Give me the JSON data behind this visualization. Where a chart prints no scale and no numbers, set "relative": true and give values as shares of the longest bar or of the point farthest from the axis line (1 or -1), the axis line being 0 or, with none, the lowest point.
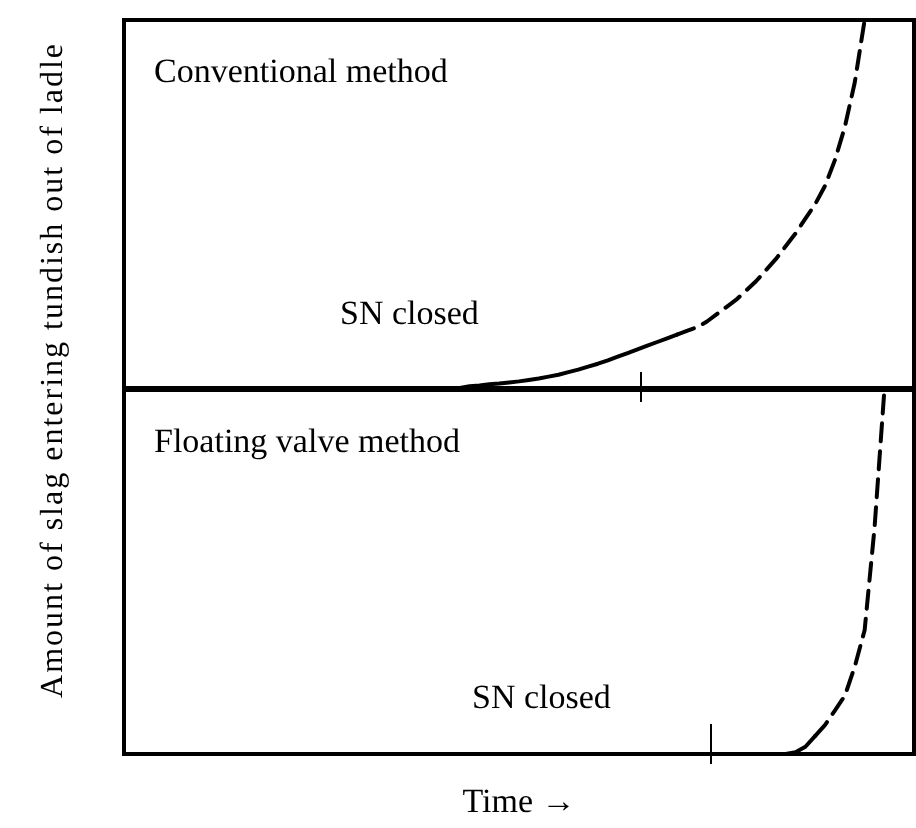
{
  "chart_data": [
    {
      "type": "line",
      "title": "Conventional method",
      "ylabel": "Amount of slag entering tundish out of ladle",
      "relative": true,
      "annotations": [
        "SN closed"
      ],
      "categories": [
        null,
        null,
        null,
        null,
        null,
        null,
        null,
        null,
        null,
        null,
        null,
        null,
        null,
        null,
        null,
        null,
        null,
        null,
        null,
        null,
        null,
        null,
        null,
        null,
        null,
        null,
        null,
        null,
        null,
        null,
        null,
        null,
        null,
        null,
        null,
        null,
        null,
        null,
        null,
        null,
        null,
        null,
        null,
        null,
        null,
        null,
        null,
        null,
        null,
        null,
        null,
        null,
        null,
        null,
        null,
        null,
        null,
        null,
        null,
        null,
        null,
        null,
        null,
        null,
        null,
        null,
        null,
        null,
        null,
        null,
        null,
        null,
        null,
        null,
        null,
        null,
        null,
        null,
        null,
        null,
        null
      ],
      "series": [
        {
          "color": "#000000",
          "line_style": "solid",
          "values": [
            0,
            0,
            0,
            0,
            0,
            0,
            0,
            0,
            0,
            0,
            0,
            0,
            0,
            0,
            0,
            0,
            0,
            0,
            0,
            0,
            0,
            0,
            0,
            0,
            0,
            0,
            0,
            0,
            0,
            0,
            0,
            0,
            0,
            0,
            0,
            0.005,
            0.007,
            0.01,
            0.012,
            0.015,
            0.018,
            0.022,
            0.026,
            0.031,
            0.036,
            0.043,
            0.05,
            0.058,
            0.066,
            0.075,
            0.085,
            0.095,
            0.105,
            0.115,
            0.125,
            0.135,
            0.145,
            null,
            null,
            null,
            null,
            null,
            null,
            null,
            null,
            null,
            null,
            null,
            null,
            null,
            null,
            null,
            null,
            null,
            null,
            null,
            null,
            null,
            null,
            null,
            null
          ]
        },
        {
          "color": "#000000",
          "line_style": "dashed",
          "values": [
            null,
            null,
            null,
            null,
            null,
            null,
            null,
            null,
            null,
            null,
            null,
            null,
            null,
            null,
            null,
            null,
            null,
            null,
            null,
            null,
            null,
            null,
            null,
            null,
            null,
            null,
            null,
            null,
            null,
            null,
            null,
            null,
            null,
            null,
            null,
            null,
            null,
            null,
            null,
            null,
            null,
            null,
            null,
            null,
            null,
            null,
            null,
            null,
            null,
            null,
            null,
            null,
            null,
            null,
            null,
            null,
            0.145,
            0.155,
            0.165,
            0.18,
            0.2,
            0.22,
            0.24,
            0.265,
            0.29,
            0.32,
            0.35,
            0.385,
            0.42,
            0.46,
            0.5,
            0.55,
            0.62,
            0.71,
            0.83,
            1,
            null,
            null,
            null,
            null,
            null
          ]
        }
      ]
    },
    {
      "type": "line",
      "title": "Floating valve method",
      "xlabel": "Time →",
      "relative": true,
      "annotations": [
        "SN closed"
      ],
      "categories": [
        null,
        null,
        null,
        null,
        null,
        null,
        null,
        null,
        null,
        null,
        null,
        null,
        null,
        null,
        null,
        null,
        null,
        null,
        null,
        null,
        null,
        null,
        null,
        null,
        null,
        null,
        null,
        null,
        null,
        null,
        null,
        null,
        null,
        null,
        null,
        null,
        null,
        null,
        null,
        null,
        null,
        null,
        null,
        null,
        null,
        null,
        null,
        null,
        null,
        null,
        null,
        null,
        null,
        null,
        null,
        null,
        null,
        null,
        null,
        null,
        null,
        null,
        null,
        null,
        null,
        null,
        null,
        null,
        null,
        null,
        null,
        null,
        null,
        null,
        null,
        null,
        null,
        null,
        null,
        null,
        null
      ],
      "series": [
        {
          "color": "#000000",
          "line_style": "solid",
          "values": [
            null,
            null,
            null,
            null,
            null,
            null,
            null,
            null,
            null,
            null,
            null,
            null,
            null,
            null,
            null,
            null,
            null,
            null,
            null,
            null,
            null,
            null,
            null,
            null,
            null,
            null,
            null,
            null,
            null,
            null,
            null,
            null,
            null,
            null,
            null,
            null,
            null,
            null,
            null,
            null,
            null,
            null,
            null,
            null,
            null,
            null,
            null,
            null,
            null,
            null,
            null,
            null,
            null,
            null,
            null,
            null,
            null,
            null,
            null,
            null,
            null,
            null,
            null,
            null,
            null,
            null,
            null,
            0,
            0.005,
            0.02,
            0.05,
            null,
            null,
            null,
            null,
            null,
            null,
            null,
            null,
            null,
            null
          ]
        },
        {
          "color": "#000000",
          "line_style": "dashed",
          "values": [
            null,
            null,
            null,
            null,
            null,
            null,
            null,
            null,
            null,
            null,
            null,
            null,
            null,
            null,
            null,
            null,
            null,
            null,
            null,
            null,
            null,
            null,
            null,
            null,
            null,
            null,
            null,
            null,
            null,
            null,
            null,
            null,
            null,
            null,
            null,
            null,
            null,
            null,
            null,
            null,
            null,
            null,
            null,
            null,
            null,
            null,
            null,
            null,
            null,
            null,
            null,
            null,
            null,
            null,
            null,
            null,
            null,
            null,
            null,
            null,
            null,
            null,
            null,
            null,
            null,
            null,
            null,
            null,
            null,
            null,
            0.05,
            0.08,
            0.12,
            0.16,
            0.24,
            0.34,
            0.62,
            1,
            null,
            null,
            null
          ]
        }
      ]
    }
  ]
}
